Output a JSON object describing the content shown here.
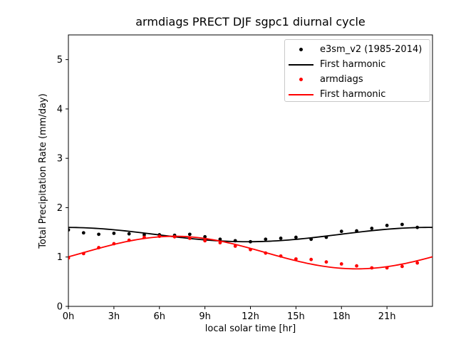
{
  "figure": {
    "title": "armdiags PRECT DJF sgpc1 diurnal cycle",
    "xlabel": "local solar time [hr]",
    "ylabel": "Total Precipitation Rate (mm/day)"
  },
  "chart_data": {
    "type": "line",
    "title": "armdiags PRECT DJF sgpc1 diurnal cycle",
    "xlabel": "local solar time [hr]",
    "ylabel": "Total Precipitation Rate (mm/day)",
    "xlim": [
      0,
      24
    ],
    "ylim": [
      0,
      5.5
    ],
    "xtick_values": [
      0,
      3,
      6,
      9,
      12,
      15,
      18,
      21
    ],
    "xtick_labels": [
      "0h",
      "3h",
      "6h",
      "9h",
      "12h",
      "15h",
      "18h",
      "21h"
    ],
    "ytick_values": [
      0,
      1,
      2,
      3,
      4,
      5
    ],
    "ytick_labels": [
      "0",
      "1",
      "2",
      "3",
      "4",
      "5"
    ],
    "grid": false,
    "legend_position": "upper right",
    "hours": [
      0,
      1,
      2,
      3,
      4,
      5,
      6,
      7,
      8,
      9,
      10,
      11,
      12,
      13,
      14,
      15,
      16,
      17,
      18,
      19,
      20,
      21,
      22,
      23
    ],
    "series": [
      {
        "name": "e3sm_v2 (1985-2014)",
        "style": "scatter",
        "color": "#000000",
        "values": [
          1.55,
          1.49,
          1.46,
          1.48,
          1.47,
          1.45,
          1.45,
          1.44,
          1.46,
          1.41,
          1.36,
          1.33,
          1.31,
          1.36,
          1.38,
          1.4,
          1.36,
          1.4,
          1.52,
          1.53,
          1.58,
          1.64,
          1.66,
          1.6
        ]
      },
      {
        "name": "First harmonic",
        "style": "line",
        "color": "#000000",
        "harmonic": {
          "mean": 1.455,
          "amplitude": 0.145,
          "peak_hour": 23.8
        }
      },
      {
        "name": "armdiags",
        "style": "scatter",
        "color": "#ff0000",
        "values": [
          0.98,
          1.07,
          1.19,
          1.27,
          1.34,
          1.4,
          1.42,
          1.41,
          1.38,
          1.33,
          1.29,
          1.22,
          1.15,
          1.08,
          1.02,
          0.96,
          0.95,
          0.9,
          0.86,
          0.82,
          0.78,
          0.78,
          0.81,
          0.88
        ]
      },
      {
        "name": "First harmonic",
        "style": "line",
        "color": "#ff0000",
        "harmonic": {
          "mean": 1.09,
          "amplitude": 0.33,
          "peak_hour": 7.0
        }
      }
    ]
  }
}
